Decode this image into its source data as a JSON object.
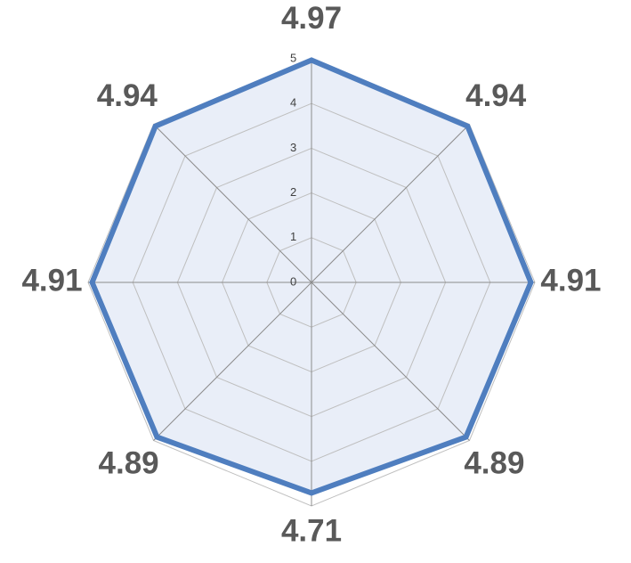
{
  "chart_data": {
    "type": "radar",
    "categories": [
      null,
      null,
      null,
      null,
      null,
      null,
      null,
      null
    ],
    "series": [
      {
        "color": "#4f7ebf",
        "fill": "#e9eef8",
        "values": [
          4.97,
          4.94,
          4.91,
          4.89,
          4.71,
          4.89,
          4.91,
          4.94
        ]
      }
    ],
    "ylim": [
      0,
      5
    ],
    "yticks": [
      0,
      1,
      2,
      3,
      4,
      5
    ],
    "grid": true
  }
}
